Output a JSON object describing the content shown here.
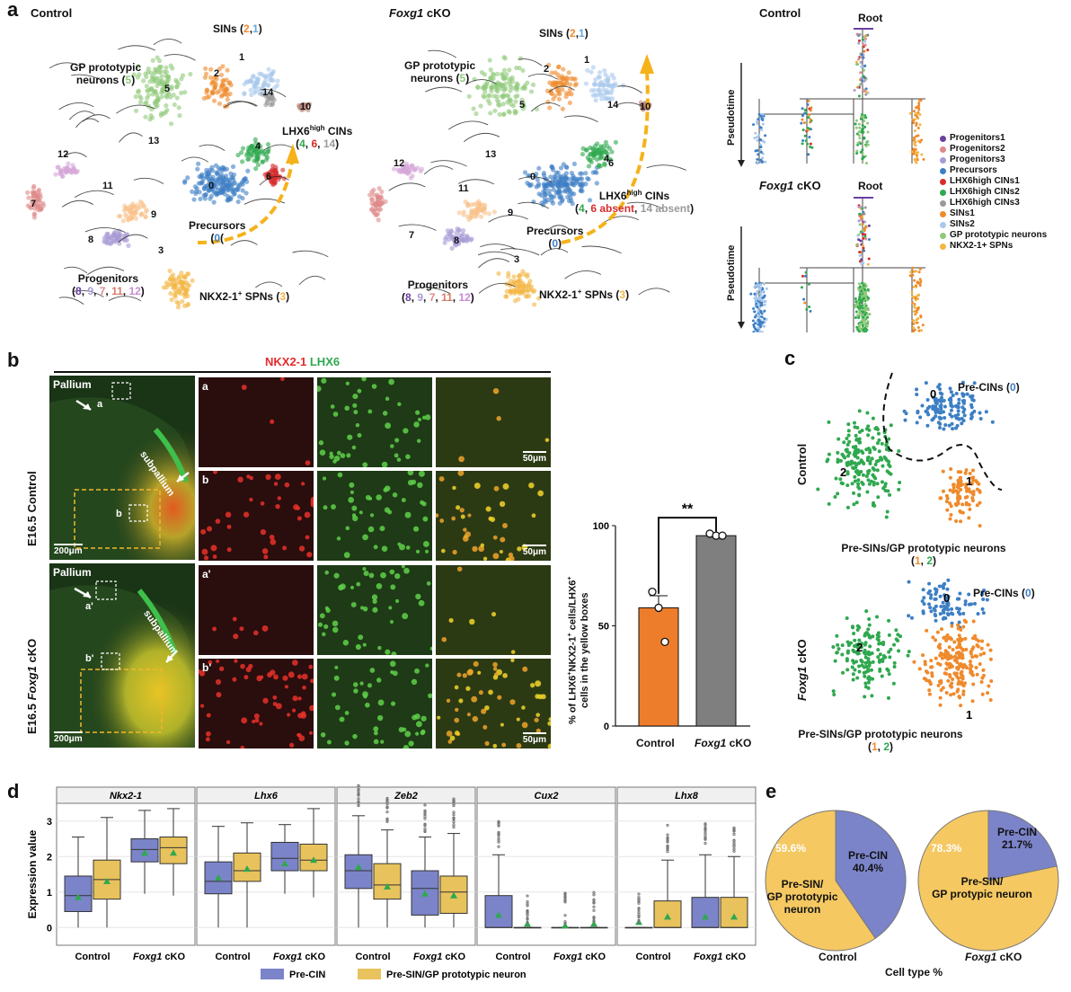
{
  "panel_a": {
    "letter": "a",
    "control_title": "Control",
    "cko_title": "Foxg1",
    "cko_suffix": " cKO",
    "control_umap": {
      "sins": [
        "SINs (",
        "2",
        ",",
        "1",
        ")"
      ],
      "gp": [
        "GP prototypic",
        "neurons (",
        "5",
        ")"
      ],
      "lhx6": [
        "LHX6",
        "high",
        " CINs"
      ],
      "lhx6_sub": [
        "(",
        "4",
        ", ",
        "6",
        ", ",
        "14",
        ")"
      ],
      "precursors": [
        "Precursors",
        "(",
        "0",
        ")"
      ],
      "progenitors": [
        "Progenitors",
        "(",
        "8",
        ", ",
        "9",
        ", ",
        "7",
        ", ",
        "11",
        ", ",
        "12",
        ")"
      ],
      "spns": [
        "NKX2-1",
        "+",
        " SPNs (",
        "3",
        ")"
      ],
      "cluster_numbers": [
        "1",
        "2",
        "5",
        "14",
        "10",
        "13",
        "4",
        "6",
        "0",
        "12",
        "7",
        "11",
        "9",
        "8",
        "3"
      ]
    },
    "cko_umap": {
      "sins": [
        "SINs (",
        "2",
        ",",
        "1",
        ")"
      ],
      "gp": [
        "GP prototypic",
        "neurons (",
        "5",
        ")"
      ],
      "lhx6": [
        "LHX6",
        "high",
        " CINs"
      ],
      "lhx6_sub": [
        "(",
        "4",
        ", ",
        "6 absent",
        ", ",
        "14 absent",
        ")"
      ],
      "precursors": [
        "Precursors",
        "(",
        "0",
        ")"
      ],
      "progenitors": [
        "Progenitors",
        "(",
        "8",
        ", ",
        "9",
        ", ",
        "7",
        ", ",
        "11",
        ", ",
        "12",
        ")"
      ],
      "spns": [
        "NKX2-1",
        "+",
        " SPNs (",
        "3",
        ")"
      ],
      "cluster_numbers": [
        "1",
        "2",
        "5",
        "14",
        "10",
        "13",
        "4",
        "6",
        "0",
        "12",
        "7",
        "11",
        "9",
        "8",
        "3"
      ]
    },
    "tree_control_title": "Control",
    "tree_cko_title": "Foxg1",
    "tree_cko_suffix": " cKO",
    "root_label": "Root",
    "pseudotime_label": "Pseudotime",
    "legend": [
      {
        "label": "Progenitors1",
        "color": "#6b3fa0"
      },
      {
        "label": "Progenitors2",
        "color": "#e08a8a"
      },
      {
        "label": "Progenitors3",
        "color": "#a99bd6"
      },
      {
        "label": "Precursors",
        "color": "#3d7fc4"
      },
      {
        "label": "LHX6high CINs1",
        "color": "#d62d2d"
      },
      {
        "label": "LHX6high CINs2",
        "color": "#2fa84f"
      },
      {
        "label": "LHX6high CINs3",
        "color": "#9a9a9a"
      },
      {
        "label": "SINs1",
        "color": "#ef8a2c"
      },
      {
        "label": "SINs2",
        "color": "#a9c8ec"
      },
      {
        "label": "GP prototypic neurons",
        "color": "#8fc97a"
      },
      {
        "label": "NKX2-1+ SPNs",
        "color": "#f4b642"
      }
    ]
  },
  "panel_b": {
    "letter": "b",
    "header_red": "NKX2-1",
    "header_green": " LHX6",
    "control_row_label": "E16.5  Control",
    "cko_row_label_prefix": "E16.5  ",
    "cko_row_label_italic": "Foxg1",
    "cko_row_label_suffix": " cKO",
    "pallium": "Pallium",
    "subpallium": "subpallium",
    "tag_a": "a",
    "tag_b": "b",
    "tag_a_prime": "a'",
    "tag_b_prime": "b'",
    "scale_200": "200μm",
    "scale_50": "50μm",
    "bar_chart_ylabel_1": "% of LHX6",
    "bar_chart_ylabel_2": "+",
    "bar_chart_ylabel_3": "NKX2-1",
    "bar_chart_ylabel_4": " cells/LHX6",
    "bar_chart_ylabel_5": "cells in the yellow boxes",
    "significance": "**",
    "x_control": "Control",
    "x_cko_italic": "Foxg1",
    "x_cko_suffix": " cKO"
  },
  "chart_data": [
    {
      "type": "bar",
      "categories": [
        "Control",
        "Foxg1 cKO"
      ],
      "values": [
        59,
        95
      ],
      "error_sem": [
        6,
        1
      ],
      "points": [
        [
          67,
          59,
          42
        ],
        [
          96,
          95,
          95
        ]
      ],
      "colors": [
        "#ee7d2b",
        "#7f7f7f"
      ],
      "ylim": [
        0,
        100
      ],
      "yticks": [
        0,
        50,
        100
      ],
      "annotation": "**"
    },
    {
      "type": "box",
      "genes": [
        "Nkx2-1",
        "Lhx6",
        "Zeb2",
        "Cux2",
        "Lhx8"
      ],
      "groups": [
        "Control",
        "Foxg1 cKO"
      ],
      "series": [
        {
          "name": "Pre-CIN",
          "color": "#7b84c9"
        },
        {
          "name": "Pre-SIN/GP prototypic neuron",
          "color": "#e8c25c"
        }
      ],
      "ylabel": "Expression value",
      "yticks": [
        0,
        1,
        2,
        3
      ],
      "ylim": [
        -0.5,
        3.5
      ],
      "boxes": [
        [
          [
            [
              0,
              0.45,
              0.9,
              1.45,
              2.55
            ],
            0.85
          ],
          [
            [
              0,
              0.8,
              1.35,
              1.9,
              3.1
            ],
            1.3
          ],
          [
            [
              0.95,
              1.85,
              2.2,
              2.5,
              3.3
            ],
            2.1
          ],
          [
            [
              0.9,
              1.8,
              2.25,
              2.55,
              3.35
            ],
            2.1
          ]
        ],
        [
          [
            [
              0,
              0.95,
              1.3,
              1.85,
              2.85
            ],
            1.4
          ],
          [
            [
              0,
              1.3,
              1.6,
              2.1,
              2.95
            ],
            1.65
          ],
          [
            [
              0.95,
              1.6,
              1.95,
              2.4,
              2.9
            ],
            1.8
          ],
          [
            [
              0.85,
              1.6,
              1.9,
              2.35,
              3.35
            ],
            1.9
          ]
        ],
        [
          [
            [
              0,
              1.1,
              1.6,
              2.05,
              3.15
            ],
            1.7
          ],
          [
            [
              0,
              0.8,
              1.2,
              1.8,
              2.75
            ],
            1.15
          ],
          [
            [
              0,
              0.35,
              1.1,
              1.6,
              2.55
            ],
            0.95
          ],
          [
            [
              0,
              0.4,
              1.0,
              1.45,
              2.65
            ],
            0.9
          ]
        ],
        [
          [
            [
              0,
              0,
              0,
              0.9,
              2.05
            ],
            0.35
          ],
          [
            [
              0,
              0,
              0,
              0,
              0
            ],
            0.1
          ],
          [
            [
              0,
              0,
              0,
              0,
              0
            ],
            0.05
          ],
          [
            [
              0,
              0,
              0,
              0,
              0
            ],
            0.1
          ]
        ],
        [
          [
            [
              0,
              0,
              0,
              0,
              0
            ],
            0.15
          ],
          [
            [
              0,
              0,
              0,
              0.75,
              1.9
            ],
            0.3
          ],
          [
            [
              0,
              0,
              0,
              0.85,
              2.05
            ],
            0.3
          ],
          [
            [
              0,
              0,
              0,
              0.85,
              2.0
            ],
            0.3
          ]
        ]
      ]
    },
    {
      "type": "pie",
      "title": "Control",
      "slices": [
        {
          "label": "Pre-CIN",
          "value": 40.4,
          "color": "#7b84c9"
        },
        {
          "label": "Pre-SIN/ GP prototypic neuron",
          "value": 59.6,
          "color": "#f5c862"
        }
      ]
    },
    {
      "type": "pie",
      "title": "Foxg1 cKO",
      "slices": [
        {
          "label": "Pre-CIN",
          "value": 21.7,
          "color": "#7b84c9"
        },
        {
          "label": "Pre-SIN/ GP protypic neuron",
          "value": 78.3,
          "color": "#f5c862"
        }
      ]
    }
  ],
  "panel_c": {
    "letter": "c",
    "control_label": "Control",
    "cko_label_italic": "Foxg1",
    "cko_label_suffix": " cKO",
    "pre_cins": [
      "Pre-CINs (",
      "0",
      ")"
    ],
    "pre_sins": [
      "Pre-SINs/GP prototypic neurons",
      "(",
      "1",
      ", ",
      "2",
      ")"
    ],
    "clusters": [
      "0",
      "1",
      "2"
    ]
  },
  "panel_d": {
    "letter": "d",
    "legend_pre_cin": "Pre-CIN",
    "legend_pre_sin": "Pre-SIN/GP prototypic neuron",
    "x_control": "Control",
    "x_cko_italic": "Foxg1",
    "x_cko_suffix": " cKO"
  },
  "panel_e": {
    "letter": "e",
    "control_pct_sin": "59.6%",
    "control_cin_label": "Pre-CIN",
    "control_cin_pct": "40.4%",
    "control_sin_label_1": "Pre-SIN/",
    "control_sin_label_2": "GP prototypic",
    "control_sin_label_3": "neuron",
    "cko_pct_sin": "78.3%",
    "cko_cin_label": "Pre-CIN",
    "cko_cin_pct": "21.7%",
    "cko_sin_label_1": "Pre-SIN/",
    "cko_sin_label_2": "GP protypic neuron",
    "title_control": "Control",
    "title_cko_italic": "Foxg1",
    "title_cko_suffix": " cKO",
    "footer": "Cell type %"
  }
}
